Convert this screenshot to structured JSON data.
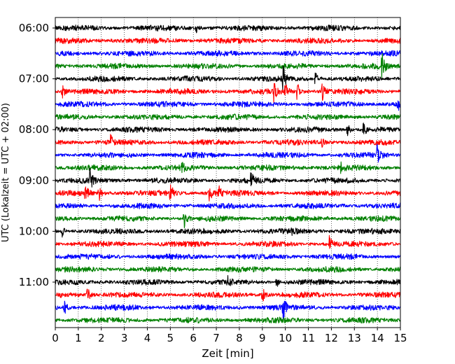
{
  "chart_data": {
    "type": "line",
    "xlabel": "Zeit  [min]",
    "ylabel": "UTC (Lokalzeit = UTC + 02:00)",
    "xlim": [
      0,
      15
    ],
    "x_ticks": [
      "0",
      "1",
      "2",
      "3",
      "4",
      "5",
      "6",
      "7",
      "8",
      "9",
      "10",
      "11",
      "12",
      "13",
      "14",
      "15"
    ],
    "y_ticks": [
      {
        "label": "06:00",
        "trace_index": 0
      },
      {
        "label": "07:00",
        "trace_index": 4
      },
      {
        "label": "08:00",
        "trace_index": 8
      },
      {
        "label": "09:00",
        "trace_index": 12
      },
      {
        "label": "10:00",
        "trace_index": 16
      },
      {
        "label": "11:00",
        "trace_index": 20
      }
    ],
    "trace_minutes": 15,
    "trace_count": 24,
    "grid": "vertical dotted",
    "color_cycle": [
      "#000000",
      "#ff0000",
      "#0000ff",
      "#008000"
    ],
    "series": [
      {
        "start": "06:00",
        "color": "#000000",
        "events": [
          [
            6.1,
            0.45
          ]
        ]
      },
      {
        "start": "06:15",
        "color": "#ff0000",
        "events": []
      },
      {
        "start": "06:30",
        "color": "#0000ff",
        "events": []
      },
      {
        "start": "06:45",
        "color": "#008000",
        "events": [
          [
            14.2,
            1.3
          ]
        ]
      },
      {
        "start": "07:00",
        "color": "#000000",
        "events": [
          [
            9.9,
            1.2
          ],
          [
            11.3,
            0.6
          ]
        ]
      },
      {
        "start": "07:15",
        "color": "#ff0000",
        "events": [
          [
            0.3,
            0.5
          ],
          [
            9.5,
            0.8
          ],
          [
            10.0,
            0.7
          ],
          [
            10.5,
            0.9
          ],
          [
            11.6,
            0.7
          ]
        ]
      },
      {
        "start": "07:30",
        "color": "#0000ff",
        "events": [
          [
            14.9,
            0.9
          ]
        ]
      },
      {
        "start": "07:45",
        "color": "#008000",
        "events": []
      },
      {
        "start": "08:00",
        "color": "#000000",
        "events": [
          [
            12.7,
            0.45
          ],
          [
            13.4,
            0.65
          ]
        ]
      },
      {
        "start": "08:15",
        "color": "#ff0000",
        "events": [
          [
            2.4,
            0.5
          ],
          [
            11.6,
            0.4
          ]
        ]
      },
      {
        "start": "08:30",
        "color": "#0000ff",
        "events": [
          [
            14.0,
            1.0
          ]
        ]
      },
      {
        "start": "08:45",
        "color": "#008000",
        "events": [
          [
            5.5,
            0.35
          ],
          [
            12.4,
            0.35
          ]
        ]
      },
      {
        "start": "09:00",
        "color": "#000000",
        "events": [
          [
            1.5,
            0.9
          ],
          [
            8.5,
            0.7
          ]
        ]
      },
      {
        "start": "09:15",
        "color": "#ff0000",
        "events": [
          [
            1.3,
            0.8
          ],
          [
            1.9,
            0.6
          ],
          [
            5.0,
            1.0
          ],
          [
            6.7,
            0.7
          ],
          [
            7.1,
            0.6
          ]
        ]
      },
      {
        "start": "09:30",
        "color": "#0000ff",
        "events": []
      },
      {
        "start": "09:45",
        "color": "#008000",
        "events": [
          [
            5.6,
            0.8
          ]
        ]
      },
      {
        "start": "10:00",
        "color": "#000000",
        "events": [
          [
            0.3,
            0.4
          ],
          [
            10.3,
            0.4
          ]
        ]
      },
      {
        "start": "10:15",
        "color": "#ff0000",
        "events": [
          [
            11.9,
            0.8
          ]
        ]
      },
      {
        "start": "10:30",
        "color": "#0000ff",
        "events": []
      },
      {
        "start": "10:45",
        "color": "#008000",
        "events": []
      },
      {
        "start": "11:00",
        "color": "#000000",
        "events": [
          [
            7.5,
            0.6
          ],
          [
            9.6,
            0.5
          ]
        ]
      },
      {
        "start": "11:15",
        "color": "#ff0000",
        "events": [
          [
            1.4,
            0.6
          ],
          [
            9.0,
            0.7
          ]
        ]
      },
      {
        "start": "11:30",
        "color": "#0000ff",
        "events": [
          [
            0.4,
            0.6
          ],
          [
            9.9,
            0.9
          ]
        ]
      },
      {
        "start": "11:45",
        "color": "#008000",
        "events": []
      }
    ]
  }
}
